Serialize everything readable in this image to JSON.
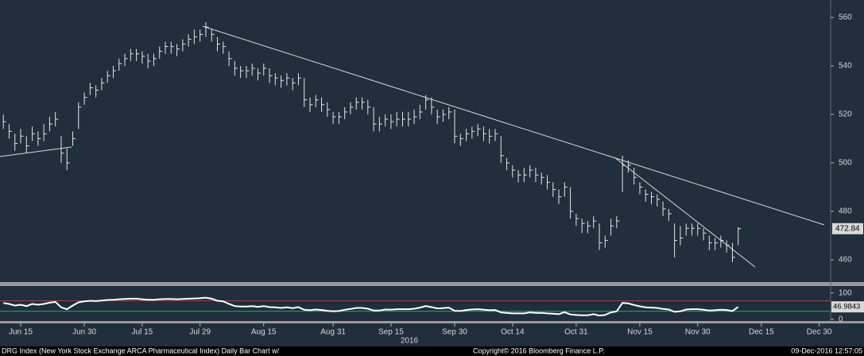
{
  "chart_data": {
    "type": "ohlc",
    "categories": [
      null,
      null,
      null,
      "Jun 15",
      null,
      null,
      null,
      null,
      null,
      null,
      null,
      null,
      null,
      null,
      "Jun 30",
      null,
      null,
      null,
      null,
      null,
      null,
      null,
      null,
      null,
      "Jul 15",
      null,
      null,
      null,
      null,
      null,
      null,
      null,
      null,
      null,
      "Jul 29",
      null,
      null,
      null,
      null,
      null,
      null,
      null,
      null,
      null,
      null,
      "Aug 15",
      null,
      null,
      null,
      null,
      null,
      null,
      null,
      null,
      null,
      null,
      null,
      "Aug 31",
      null,
      null,
      null,
      null,
      null,
      null,
      null,
      null,
      null,
      "Sep 15",
      null,
      null,
      null,
      null,
      null,
      null,
      null,
      null,
      null,
      null,
      "Sep 30",
      null,
      null,
      null,
      null,
      null,
      null,
      null,
      null,
      null,
      "Oct 14",
      null,
      null,
      null,
      null,
      null,
      null,
      null,
      null,
      null,
      null,
      "Oct 31",
      null,
      null,
      null,
      null,
      null,
      null,
      null,
      null,
      null,
      null,
      "Nov 15",
      null,
      null,
      null,
      null,
      null,
      null,
      null,
      null,
      null,
      "Nov 30",
      null,
      null,
      null,
      null,
      null,
      null,
      null,
      null,
      null,
      null,
      "Dec 15",
      null,
      null,
      null,
      null,
      null,
      null,
      null,
      null,
      null,
      "Dec 30"
    ],
    "high": [
      520,
      516,
      512,
      514,
      511,
      515,
      513,
      516,
      519,
      521,
      511,
      506,
      513,
      525,
      529,
      533,
      532,
      535,
      538,
      540,
      543,
      545,
      547,
      547,
      546,
      545,
      545,
      548,
      550,
      550,
      549,
      551,
      553,
      555,
      555,
      558,
      555,
      552,
      550,
      546,
      542,
      540,
      540,
      541,
      539,
      541,
      539,
      537,
      536,
      537,
      535,
      537,
      535,
      527,
      528,
      527,
      525,
      521,
      521,
      523,
      525,
      527,
      527,
      526,
      523,
      519,
      520,
      520,
      521,
      521,
      521,
      522,
      524,
      528,
      527,
      522,
      522,
      523,
      522,
      512,
      514,
      515,
      516,
      515,
      514,
      514,
      511,
      502,
      499,
      497,
      498,
      499,
      498,
      496,
      495,
      492,
      489,
      492,
      490,
      479,
      477,
      476,
      478,
      475,
      470,
      477,
      478,
      503,
      501,
      498,
      492,
      489,
      488,
      487,
      484,
      481,
      475,
      474,
      475,
      475,
      475,
      473,
      470,
      469,
      470,
      468,
      467,
      473.5,
      null,
      null,
      null,
      null,
      null,
      null,
      null,
      null,
      null,
      null,
      null,
      null,
      null,
      null
    ],
    "low": [
      514,
      510,
      505,
      508,
      504,
      509,
      507,
      509,
      513,
      515,
      500,
      497,
      507,
      514,
      524,
      528,
      527,
      530,
      533,
      535,
      538,
      540,
      542,
      542,
      541,
      539,
      540,
      543,
      545,
      545,
      544,
      546,
      548,
      549,
      550,
      552,
      550,
      546,
      545,
      540,
      536,
      535,
      535,
      536,
      534,
      536,
      533,
      532,
      531,
      532,
      530,
      532,
      523,
      521,
      523,
      521,
      519,
      516,
      516,
      518,
      520,
      522,
      522,
      520,
      513,
      513,
      515,
      514,
      515,
      515,
      515,
      516,
      518,
      522,
      520,
      516,
      517,
      518,
      508,
      507,
      509,
      510,
      511,
      509,
      508,
      509,
      500,
      497,
      494,
      492,
      492,
      494,
      492,
      491,
      489,
      486,
      483,
      486,
      477,
      474,
      471,
      471,
      473,
      464,
      465,
      470,
      473,
      488,
      496,
      491,
      487,
      484,
      483,
      482,
      478,
      476,
      461,
      466,
      470,
      470,
      470,
      468,
      464,
      464,
      465,
      463,
      459,
      466,
      null,
      null,
      null,
      null,
      null,
      null,
      null,
      null,
      null,
      null,
      null,
      null,
      null,
      null
    ],
    "close": [
      517,
      513,
      508,
      511,
      507,
      512,
      510,
      512,
      516,
      518,
      504,
      500,
      510,
      523,
      527,
      531,
      530,
      533,
      536,
      538,
      541,
      543,
      545,
      545,
      544,
      542,
      543,
      546,
      548,
      548,
      547,
      549,
      551,
      552,
      553,
      556,
      553,
      549,
      548,
      543,
      539,
      538,
      538,
      539,
      537,
      539,
      536,
      535,
      534,
      535,
      533,
      535,
      526,
      524,
      526,
      524,
      522,
      519,
      519,
      521,
      523,
      525,
      525,
      523,
      516,
      516,
      518,
      517,
      518,
      518,
      518,
      519,
      521,
      526,
      523,
      519,
      520,
      521,
      511,
      510,
      512,
      513,
      514,
      512,
      511,
      512,
      503,
      500,
      497,
      495,
      495,
      497,
      495,
      494,
      492,
      489,
      486,
      490,
      480,
      477,
      475,
      474,
      476,
      467,
      468,
      474,
      476,
      499,
      499,
      494,
      490,
      487,
      486,
      485,
      481,
      479,
      468,
      469,
      473,
      473,
      473,
      471,
      467,
      467,
      468,
      466,
      461,
      472.84,
      null,
      null,
      null,
      null,
      null,
      null,
      null,
      null,
      null,
      null,
      null,
      null,
      null,
      null
    ],
    "color": "#e6e6e6",
    "ylim": [
      450.8,
      567.2
    ],
    "yticks": [
      460,
      480,
      500,
      520,
      540,
      560
    ],
    "x_year": "2016",
    "indicator": {
      "type": "line",
      "values": [
        62,
        58,
        52,
        55,
        50,
        58,
        55,
        58,
        63,
        66,
        45,
        38,
        52,
        64,
        68,
        70,
        69,
        71,
        73,
        74,
        76,
        77,
        78,
        78,
        76,
        74,
        74,
        76,
        77,
        77,
        76,
        77,
        78,
        79,
        80,
        82,
        78,
        70,
        68,
        58,
        50,
        48,
        48,
        50,
        47,
        50,
        46,
        45,
        43,
        45,
        42,
        46,
        36,
        34,
        37,
        35,
        32,
        30,
        31,
        36,
        39,
        43,
        43,
        40,
        33,
        33,
        37,
        36,
        38,
        38,
        38,
        40,
        44,
        50,
        46,
        41,
        42,
        44,
        32,
        31,
        35,
        37,
        38,
        36,
        34,
        35,
        26,
        24,
        22,
        22,
        22,
        26,
        24,
        24,
        22,
        21,
        19,
        27,
        18,
        16,
        15,
        15,
        19,
        14,
        16,
        26,
        30,
        62,
        60,
        54,
        49,
        45,
        44,
        43,
        39,
        37,
        28,
        30,
        37,
        38,
        38,
        36,
        33,
        34,
        36,
        35,
        31,
        46.9843,
        null,
        null,
        null,
        null,
        null,
        null,
        null,
        null,
        null,
        null,
        null,
        null,
        null,
        null
      ],
      "color": "#ffffff",
      "ylim": [
        -10,
        120
      ],
      "yticks": [
        0,
        100
      ],
      "ref_lines": [
        {
          "value": 70,
          "color": "#c0392b"
        },
        {
          "value": 30,
          "color": "#27ae60"
        }
      ]
    }
  },
  "footer": {
    "title": "DRG Index (New York Stock Exchange ARCA Pharmaceutical Index) Daily Bar Chart w/",
    "copyright": "Copyright© 2016 Bloomberg Finance L.P.",
    "timestamp": "09-Dec-2016 12:57:05"
  }
}
